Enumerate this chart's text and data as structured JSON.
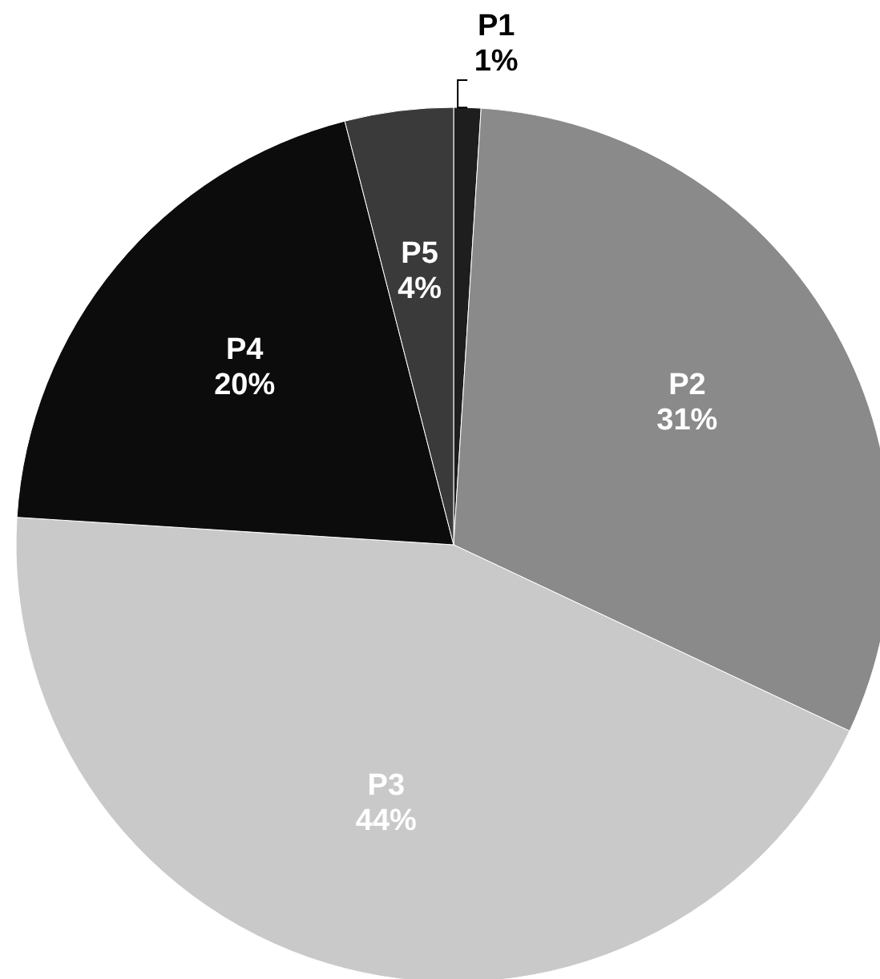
{
  "chart_data": {
    "type": "pie",
    "categories": [
      "P1",
      "P2",
      "P3",
      "P4",
      "P5"
    ],
    "values": [
      1,
      31,
      44,
      20,
      4
    ],
    "colors": [
      "#1e1e1e",
      "#8a8a8a",
      "#c9c9c9",
      "#0c0c0c",
      "#3a3a3a"
    ],
    "value_labels": [
      "1%",
      "31%",
      "44%",
      "20%",
      "4%"
    ]
  }
}
